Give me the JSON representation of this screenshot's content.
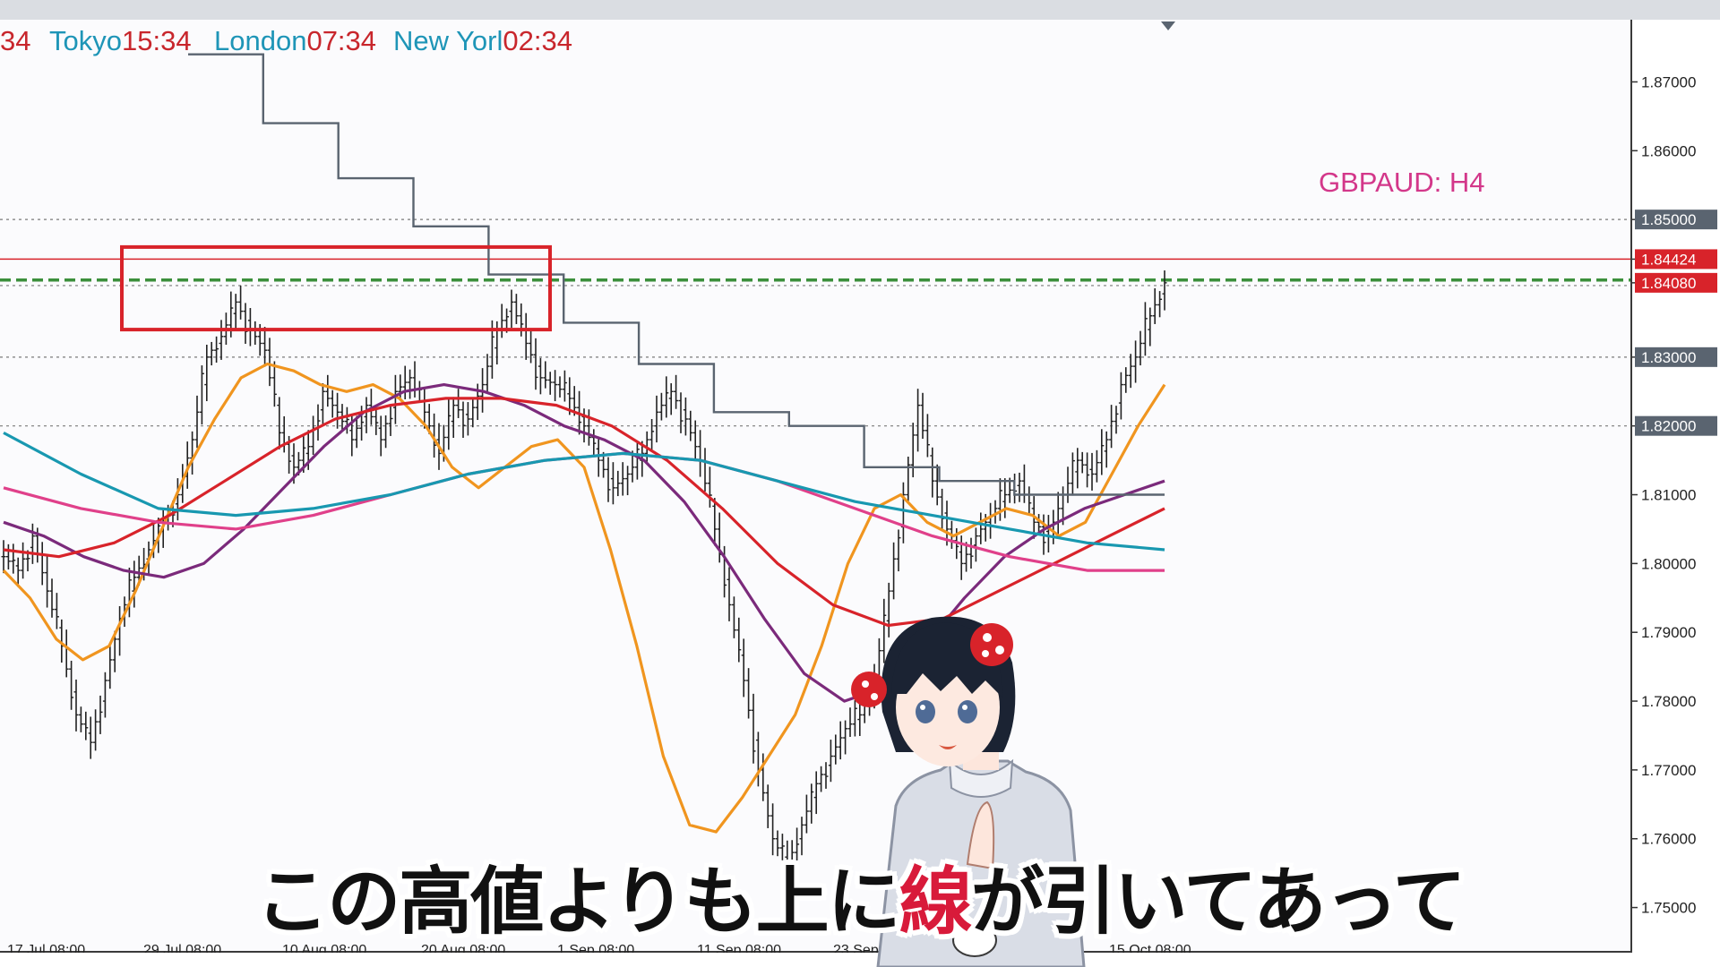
{
  "topbar": {},
  "clocks": [
    {
      "city": "",
      "time": "34"
    },
    {
      "city": "Tokyo",
      "time": "15:34"
    },
    {
      "city": "London",
      "time": "07:34"
    },
    {
      "city": "New Yorl",
      "time": "02:34"
    }
  ],
  "symbol_label": "GBPAUD: H4",
  "subtitle": {
    "before": "この高値よりも上に",
    "highlight": "線",
    "after": "が引いてあって"
  },
  "chart_data": {
    "type": "candlestick",
    "symbol": "GBPAUD",
    "timeframe": "H4",
    "title": "GBPAUD: H4",
    "ylim": [
      1.745,
      1.878
    ],
    "y_ticks": [
      "1.87000",
      "1.86000",
      "1.85000",
      "1.84424",
      "1.84080",
      "1.83000",
      "1.82000",
      "1.81000",
      "1.80000",
      "1.79000",
      "1.78000",
      "1.77000",
      "1.76000",
      "1.75000"
    ],
    "highlighted_ticks": {
      "1.85000": "#5a6470",
      "1.84424": "#d8232a",
      "1.84080": "#d8232a",
      "1.83000": "#5a6470",
      "1.82000": "#5a6470"
    },
    "x_labels": [
      "17 Jul 08:00",
      "29 Jul 08:00",
      "10 Aug 08:00",
      "20 Aug 08:00",
      "1 Sep 08:00",
      "11 Sep 08:00",
      "23 Sep 08:00",
      "",
      "",
      "15 Oct 08:00"
    ],
    "horizontal_lines": [
      {
        "price": 1.85,
        "style": "dotted",
        "color": "#7a7a7a"
      },
      {
        "price": 1.84424,
        "style": "solid",
        "color": "#d8232a"
      },
      {
        "price": 1.8412,
        "style": "dashed-thick",
        "color": "#3b8f3b"
      },
      {
        "price": 1.8404,
        "style": "dotted",
        "color": "#7a7a7a"
      },
      {
        "price": 1.83,
        "style": "dotted",
        "color": "#7a7a7a"
      },
      {
        "price": 1.82,
        "style": "dotted",
        "color": "#7a7a7a"
      }
    ],
    "highlight_box": {
      "from": "24 Jul",
      "to": "24 Aug",
      "price_top": 1.846,
      "price_bottom": 1.834,
      "color": "#d8232a"
    },
    "close_series": [
      1.801,
      1.799,
      1.804,
      1.796,
      1.788,
      1.778,
      1.774,
      1.783,
      1.792,
      1.798,
      1.802,
      1.806,
      1.81,
      1.818,
      1.83,
      1.833,
      1.838,
      1.834,
      1.831,
      1.819,
      1.814,
      1.817,
      1.825,
      1.822,
      1.818,
      1.823,
      1.818,
      1.825,
      1.827,
      1.822,
      1.816,
      1.823,
      1.821,
      1.826,
      1.834,
      1.838,
      1.832,
      1.827,
      1.826,
      1.824,
      1.82,
      1.815,
      1.811,
      1.813,
      1.816,
      1.822,
      1.825,
      1.821,
      1.815,
      1.805,
      1.794,
      1.783,
      1.77,
      1.76,
      1.756,
      1.762,
      1.768,
      1.772,
      1.776,
      1.778,
      1.783,
      1.796,
      1.81,
      1.823,
      1.812,
      1.805,
      1.8,
      1.804,
      1.807,
      1.81,
      1.812,
      1.806,
      1.804,
      1.81,
      1.815,
      1.813,
      1.818,
      1.826,
      1.83,
      1.836,
      1.8408
    ],
    "moving_averages": [
      {
        "color": "#f0951f",
        "values": [
          1.799,
          1.795,
          1.789,
          1.786,
          1.788,
          1.796,
          1.805,
          1.814,
          1.821,
          1.827,
          1.829,
          1.828,
          1.826,
          1.825,
          1.826,
          1.824,
          1.82,
          1.814,
          1.811,
          1.814,
          1.817,
          1.818,
          1.814,
          1.802,
          1.788,
          1.772,
          1.762,
          1.761,
          1.766,
          1.772,
          1.778,
          1.788,
          1.8,
          1.808,
          1.81,
          1.806,
          1.804,
          1.806,
          1.808,
          1.807,
          1.804,
          1.806,
          1.813,
          1.82,
          1.826
        ]
      },
      {
        "color": "#7b2a7b",
        "values": [
          1.806,
          1.804,
          1.801,
          1.799,
          1.798,
          1.8,
          1.805,
          1.811,
          1.817,
          1.822,
          1.825,
          1.826,
          1.825,
          1.823,
          1.82,
          1.818,
          1.815,
          1.809,
          1.801,
          1.792,
          1.784,
          1.78,
          1.782,
          1.788,
          1.795,
          1.801,
          1.805,
          1.808,
          1.81,
          1.812
        ]
      },
      {
        "color": "#d8232a",
        "values": [
          1.802,
          1.801,
          1.803,
          1.807,
          1.812,
          1.817,
          1.821,
          1.823,
          1.824,
          1.824,
          1.823,
          1.82,
          1.815,
          1.808,
          1.8,
          1.794,
          1.791,
          1.792,
          1.796,
          1.8,
          1.804,
          1.808
        ]
      },
      {
        "color": "#e0408a",
        "values": [
          1.811,
          1.808,
          1.806,
          1.805,
          1.807,
          1.81,
          1.813,
          1.815,
          1.816,
          1.815,
          1.812,
          1.808,
          1.804,
          1.801,
          1.799,
          1.799
        ]
      },
      {
        "color": "#1898b0",
        "values": [
          1.819,
          1.813,
          1.808,
          1.807,
          1.808,
          1.81,
          1.813,
          1.815,
          1.816,
          1.815,
          1.812,
          1.809,
          1.807,
          1.805,
          1.803,
          1.802
        ]
      }
    ],
    "step_line": {
      "color": "#5a6470",
      "values": [
        1.874,
        1.864,
        1.856,
        1.849,
        1.842,
        1.835,
        1.829,
        1.822,
        1.82,
        1.814,
        1.812,
        1.81,
        1.81
      ]
    }
  }
}
